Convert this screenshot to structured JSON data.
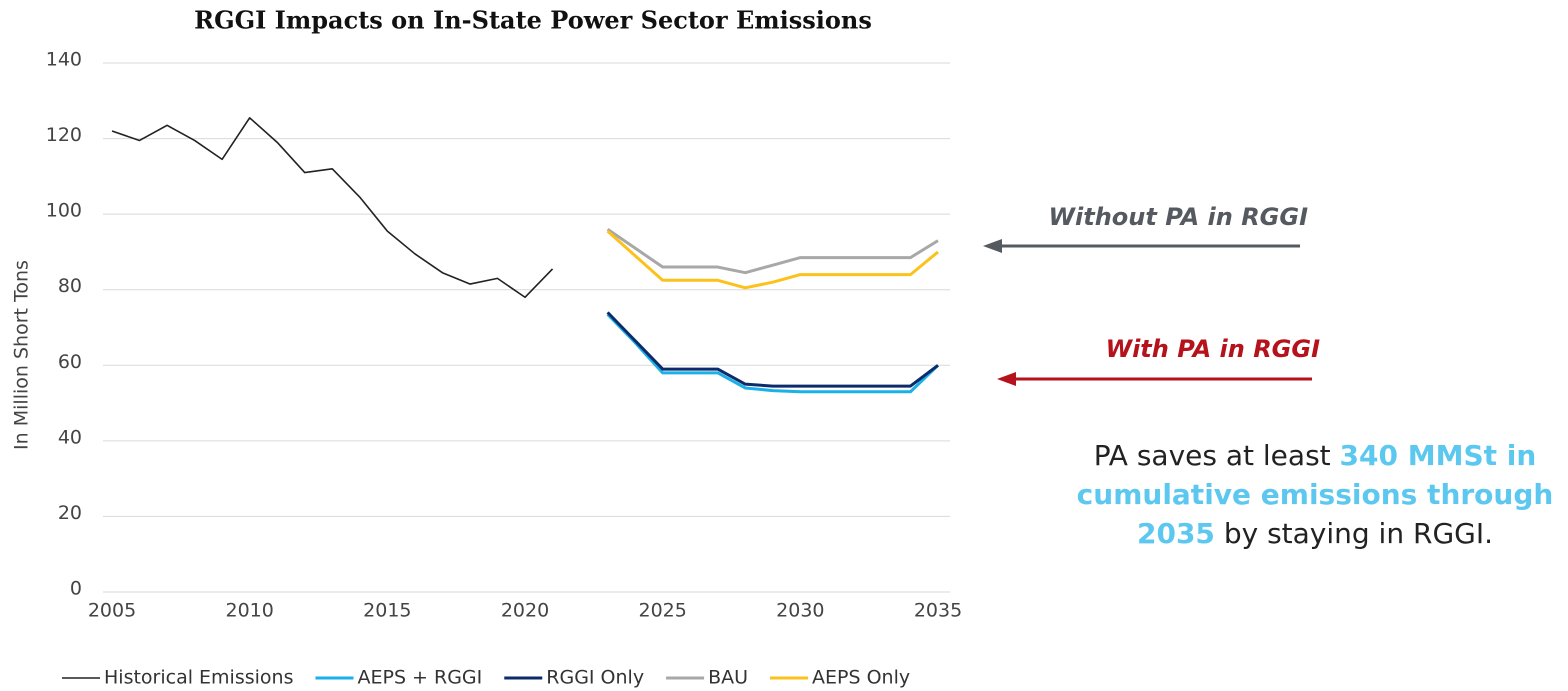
{
  "chart_data": {
    "type": "line",
    "title": "RGGI Impacts on In-State Power Sector Emissions",
    "y_label": "In Million Short Tons",
    "x": [
      2005,
      2006,
      2007,
      2008,
      2009,
      2010,
      2011,
      2012,
      2013,
      2014,
      2015,
      2016,
      2017,
      2018,
      2019,
      2020,
      2021,
      2022,
      2023,
      2024,
      2025,
      2026,
      2027,
      2028,
      2029,
      2030,
      2031,
      2032,
      2033,
      2034,
      2035
    ],
    "series": [
      {
        "name": "Historical Emissions",
        "color": "#222222",
        "values": [
          122,
          119.5,
          123.5,
          119.5,
          114.5,
          125.5,
          119,
          111,
          112,
          104.5,
          95.5,
          89.5,
          84.5,
          81.5,
          83,
          78,
          85.5,
          null,
          null,
          null,
          null,
          null,
          null,
          null,
          null,
          null,
          null,
          null,
          null,
          null,
          null
        ]
      },
      {
        "name": "AEPS + RGGI",
        "color": "#1ab0e8",
        "values": [
          null,
          null,
          null,
          null,
          null,
          null,
          null,
          null,
          null,
          null,
          null,
          null,
          null,
          null,
          null,
          null,
          null,
          null,
          73.5,
          66,
          58,
          58,
          58,
          54,
          53.3,
          53,
          53,
          53,
          53,
          53,
          60
        ]
      },
      {
        "name": "RGGI Only",
        "color": "#0d2b6b",
        "values": [
          null,
          null,
          null,
          null,
          null,
          null,
          null,
          null,
          null,
          null,
          null,
          null,
          null,
          null,
          null,
          null,
          null,
          null,
          74,
          66.5,
          59,
          59,
          59,
          55,
          54.5,
          54.5,
          54.5,
          54.5,
          54.5,
          54.5,
          60
        ]
      },
      {
        "name": "BAU",
        "color": "#a8a8a8",
        "values": [
          null,
          null,
          null,
          null,
          null,
          null,
          null,
          null,
          null,
          null,
          null,
          null,
          null,
          null,
          null,
          null,
          null,
          null,
          96,
          91,
          86,
          86,
          86,
          84.5,
          86.5,
          88.5,
          88.5,
          88.5,
          88.5,
          88.5,
          93
        ]
      },
      {
        "name": "AEPS Only",
        "color": "#fcc21b",
        "values": [
          null,
          null,
          null,
          null,
          null,
          null,
          null,
          null,
          null,
          null,
          null,
          null,
          null,
          null,
          null,
          null,
          null,
          null,
          95.5,
          89,
          82.5,
          82.5,
          82.5,
          80.5,
          82,
          84,
          84,
          84,
          84,
          84,
          90
        ]
      }
    ],
    "xlim": [
      2005,
      2035
    ],
    "xticks": [
      2005,
      2010,
      2015,
      2020,
      2025,
      2030,
      2035
    ],
    "ylim": [
      0,
      140
    ],
    "yticks": [
      0,
      20,
      40,
      60,
      80,
      100,
      120,
      140
    ],
    "grid": true,
    "legend": "bottom",
    "annotations": [
      {
        "text": "Without PA in RGGI",
        "color": "#555a60"
      },
      {
        "text": "With PA in RGGI",
        "color": "#b5121b"
      }
    ],
    "note": [
      "PA saves at least ",
      "340 MMSt in cumulative emissions through 2035",
      " by staying in RGGI."
    ],
    "note_highlight_color": "#5cc8f0"
  }
}
